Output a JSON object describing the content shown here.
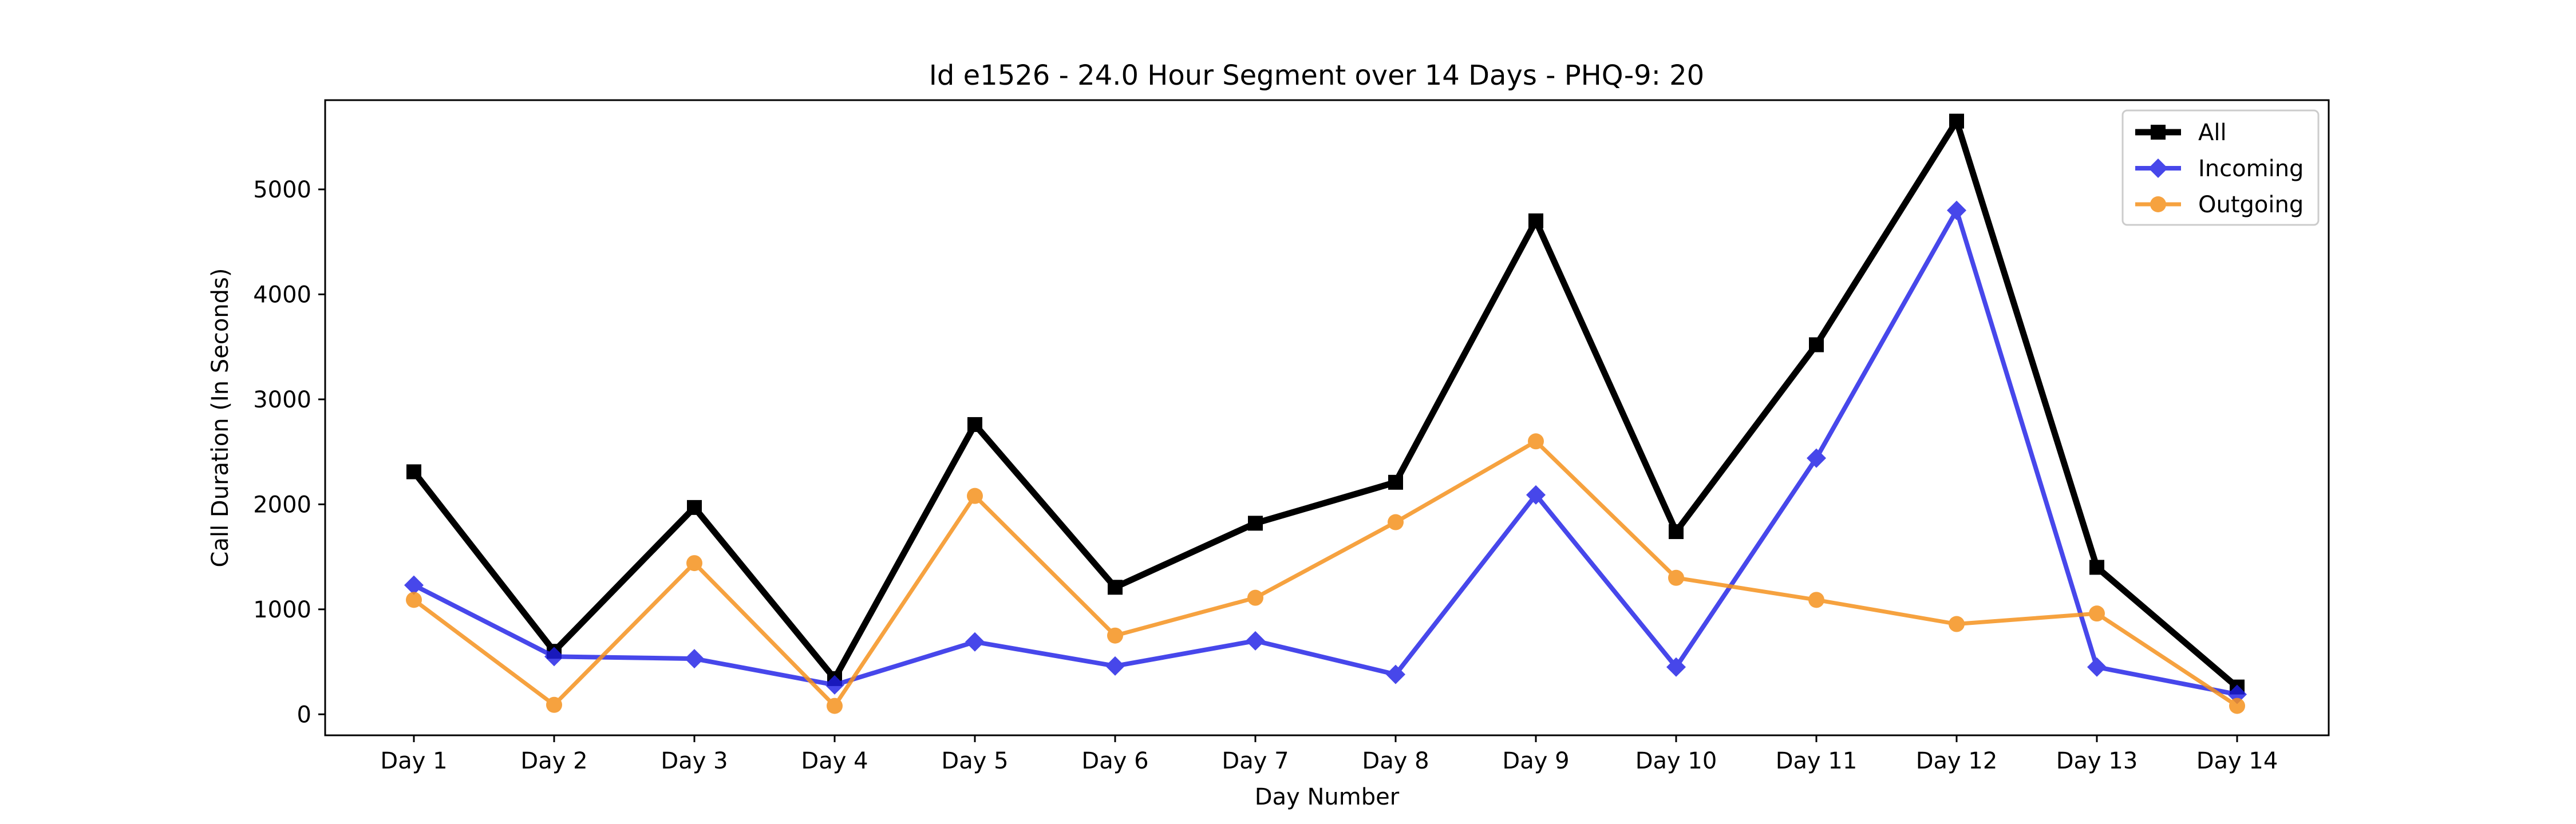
{
  "chart_data": {
    "type": "line",
    "title": "Id e1526 - 24.0 Hour Segment over 14 Days - PHQ-9: 20",
    "xlabel": "Day Number",
    "ylabel": "Call Duration (In Seconds)",
    "categories": [
      "Day 1",
      "Day 2",
      "Day 3",
      "Day 4",
      "Day 5",
      "Day 6",
      "Day 7",
      "Day 8",
      "Day 9",
      "Day 10",
      "Day 11",
      "Day 12",
      "Day 13",
      "Day 14"
    ],
    "ylim": [
      -200,
      5850
    ],
    "yticks": [
      0,
      1000,
      2000,
      3000,
      4000,
      5000
    ],
    "grid": false,
    "legend": "top-right",
    "series": [
      {
        "name": "All",
        "color": "#000000",
        "marker": "square",
        "values": [
          2310,
          600,
          1970,
          340,
          2760,
          1210,
          1820,
          2210,
          4700,
          1740,
          3520,
          5650,
          1400,
          260
        ]
      },
      {
        "name": "Incoming",
        "color": "#1f1fe6",
        "marker": "diamond",
        "values": [
          1230,
          550,
          530,
          280,
          690,
          460,
          700,
          380,
          2090,
          450,
          2440,
          4800,
          450,
          190
        ]
      },
      {
        "name": "Outgoing",
        "color": "#f5921e",
        "marker": "circle",
        "values": [
          1090,
          90,
          1440,
          80,
          2080,
          750,
          1110,
          1830,
          2600,
          1300,
          1090,
          860,
          960,
          80
        ]
      }
    ]
  }
}
